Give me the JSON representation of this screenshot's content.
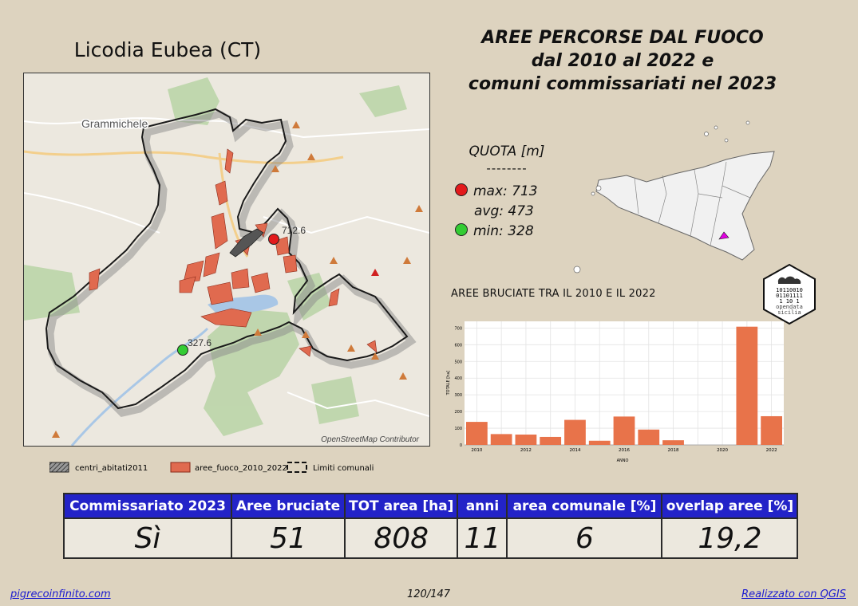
{
  "map": {
    "title": "Licodia Eubea (CT)",
    "town_label": "Grammichele",
    "max_label": "712.6",
    "min_label": "327.6",
    "attribution": "OpenStreetMap Contributor"
  },
  "header": {
    "line1": "AREE PERCORSE DAL FUOCO",
    "line2": "dal 2010 al 2022 e",
    "line3": "comuni commissariati nel 2023"
  },
  "quota": {
    "title": "QUOTA [m]",
    "separator": "--------",
    "max": "max: 713",
    "avg": "avg: 473",
    "min": "min: 328",
    "max_color": "#e31a1c",
    "min_color": "#33cc33"
  },
  "logo": {
    "line1": "10110010",
    "line2": "01101111",
    "line3": "1  10 1",
    "text1": "opendata",
    "text2": "sicilia"
  },
  "legend": {
    "centri": "centri_abitati2011",
    "aree": "aree_fuoco_2010_2022",
    "limiti": "Limiti comunali"
  },
  "chart_data": {
    "type": "bar",
    "title": "AREE BRUCIATE TRA IL 2010 E IL 2022",
    "xlabel": "ANNO",
    "ylabel": "TOTALE [ha]",
    "categories": [
      2010,
      2011,
      2012,
      2013,
      2014,
      2015,
      2016,
      2017,
      2018,
      2019,
      2020,
      2021,
      2022
    ],
    "values": [
      138,
      65,
      62,
      48,
      150,
      25,
      170,
      92,
      28,
      0,
      0,
      708,
      172
    ],
    "ylim": [
      0,
      740
    ],
    "yticks": [
      0,
      100,
      200,
      300,
      400,
      500,
      600,
      700
    ],
    "xticks": [
      2010,
      2012,
      2014,
      2016,
      2018,
      2020,
      2022
    ],
    "bar_color": "#e8734a",
    "grid": true
  },
  "table": {
    "headers": [
      "Commissariato 2023",
      "Aree bruciate",
      "TOT area [ha]",
      "anni",
      "area comunale [%]",
      "overlap aree [%]"
    ],
    "values": [
      "Sì",
      "51",
      "808",
      "11",
      "6",
      "19,2"
    ],
    "header_color": "#2323c8"
  },
  "footer": {
    "left": "pigrecoinfinito.com",
    "page": "120/147",
    "right": "Realizzato con QGIS"
  }
}
